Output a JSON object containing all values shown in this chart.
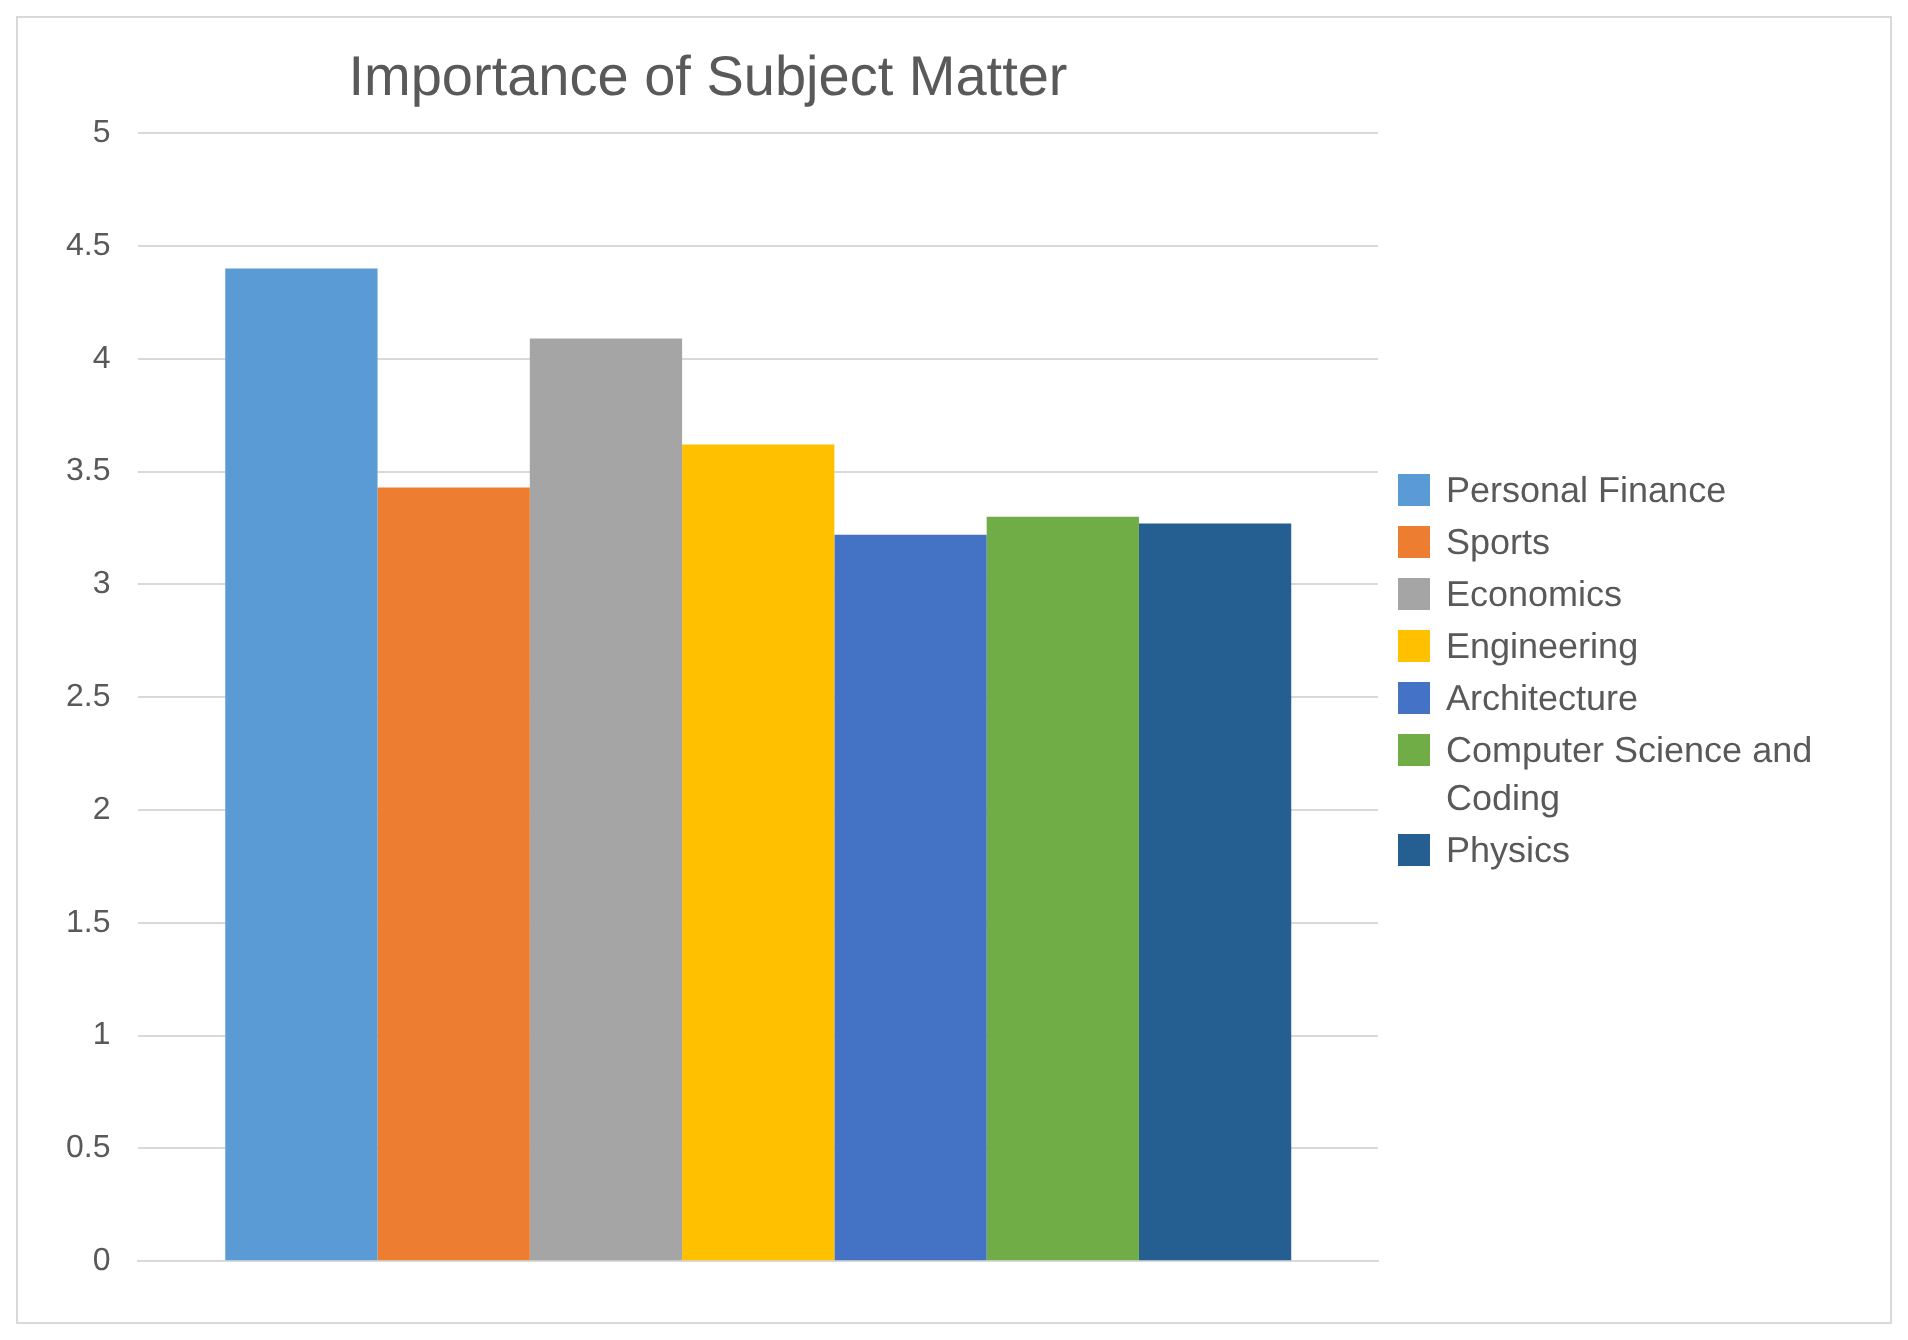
{
  "chart_data": {
    "type": "bar",
    "title": "Importance of Subject Matter",
    "categories": [
      null
    ],
    "series": [
      {
        "name": "Personal Finance",
        "color": "#5b9bd5",
        "values": [
          4.4
        ]
      },
      {
        "name": "Sports",
        "color": "#ed7d31",
        "values": [
          3.43
        ]
      },
      {
        "name": "Economics",
        "color": "#a5a5a5",
        "values": [
          4.09
        ]
      },
      {
        "name": "Engineering",
        "color": "#ffc000",
        "values": [
          3.62
        ]
      },
      {
        "name": "Architecture",
        "color": "#4472c4",
        "values": [
          3.22
        ]
      },
      {
        "name": "Computer Science and Coding",
        "color": "#70ad47",
        "values": [
          3.3
        ]
      },
      {
        "name": "Physics",
        "color": "#255e91",
        "values": [
          3.27
        ]
      }
    ],
    "ylim": [
      0,
      5
    ],
    "yticks": [
      0,
      0.5,
      1,
      1.5,
      2,
      2.5,
      3,
      3.5,
      4,
      4.5,
      5
    ],
    "grid": "y",
    "legend": "right"
  }
}
